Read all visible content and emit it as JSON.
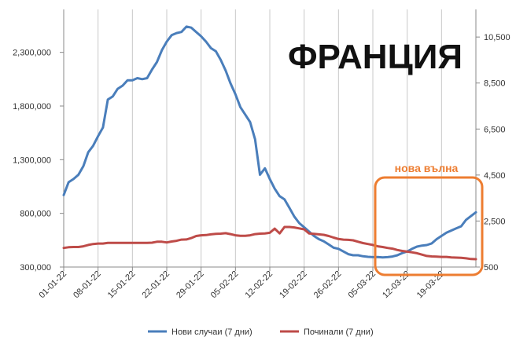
{
  "chart_data": {
    "type": "line",
    "title": "ФРАНЦИЯ",
    "grid": "vertical",
    "legend_position": "bottom",
    "y_left": {
      "range": [
        300000,
        2700000
      ],
      "ticks": [
        "300,000",
        "800,000",
        "1,300,000",
        "1,800,000",
        "2,300,000"
      ],
      "tick_values": [
        300000,
        800000,
        1300000,
        1800000,
        2300000
      ]
    },
    "y_right": {
      "range": [
        500,
        11700
      ],
      "ticks": [
        "500",
        "2,500",
        "4,500",
        "6,500",
        "8,500",
        "10,500"
      ],
      "tick_values": [
        500,
        2500,
        4500,
        6500,
        8500,
        10500
      ]
    },
    "x_tick_labels": [
      "01-01-22",
      "08-01-22",
      "15-01-22",
      "22-01-22",
      "29-01-22",
      "05-02-22",
      "12-02-22",
      "19-02-22",
      "26-02-22",
      "05-03-22",
      "12-03-22",
      "19-03-22"
    ],
    "series": [
      {
        "name": "Нови случаи (7 дни)",
        "axis": "left",
        "color": "#4a7ebb",
        "values": [
          970000,
          1090000,
          1120000,
          1160000,
          1240000,
          1370000,
          1430000,
          1520000,
          1600000,
          1860000,
          1890000,
          1960000,
          1990000,
          2040000,
          2040000,
          2060000,
          2050000,
          2060000,
          2140000,
          2210000,
          2320000,
          2400000,
          2460000,
          2480000,
          2490000,
          2540000,
          2530000,
          2490000,
          2450000,
          2400000,
          2340000,
          2310000,
          2230000,
          2130000,
          2010000,
          1910000,
          1790000,
          1720000,
          1650000,
          1490000,
          1160000,
          1220000,
          1120000,
          1030000,
          960000,
          930000,
          850000,
          770000,
          710000,
          670000,
          630000,
          590000,
          560000,
          540000,
          510000,
          480000,
          470000,
          445000,
          420000,
          410000,
          410000,
          400000,
          395000,
          392000,
          393000,
          390000,
          392000,
          398000,
          410000,
          430000,
          445000,
          470000,
          490000,
          500000,
          505000,
          520000,
          560000,
          590000,
          620000,
          640000,
          660000,
          680000,
          740000,
          775000,
          810000
        ]
      },
      {
        "name": "Починали (7 дни)",
        "axis": "right",
        "color": "#be4b48",
        "values": [
          1330,
          1360,
          1370,
          1370,
          1400,
          1460,
          1500,
          1520,
          1520,
          1550,
          1550,
          1550,
          1550,
          1550,
          1550,
          1550,
          1550,
          1550,
          1560,
          1600,
          1600,
          1570,
          1610,
          1640,
          1690,
          1700,
          1760,
          1850,
          1880,
          1890,
          1920,
          1940,
          1950,
          1970,
          1930,
          1880,
          1860,
          1860,
          1880,
          1930,
          1950,
          1960,
          1990,
          2170,
          1960,
          2240,
          2240,
          2220,
          2180,
          2140,
          1960,
          1940,
          1920,
          1900,
          1850,
          1780,
          1720,
          1690,
          1680,
          1660,
          1600,
          1540,
          1500,
          1460,
          1400,
          1370,
          1330,
          1300,
          1240,
          1200,
          1170,
          1140,
          1100,
          1040,
          980,
          960,
          950,
          940,
          940,
          920,
          910,
          900,
          880,
          850,
          840
        ]
      }
    ],
    "annotation": {
      "text": "нова вълна",
      "color": "#ed7d31"
    }
  }
}
